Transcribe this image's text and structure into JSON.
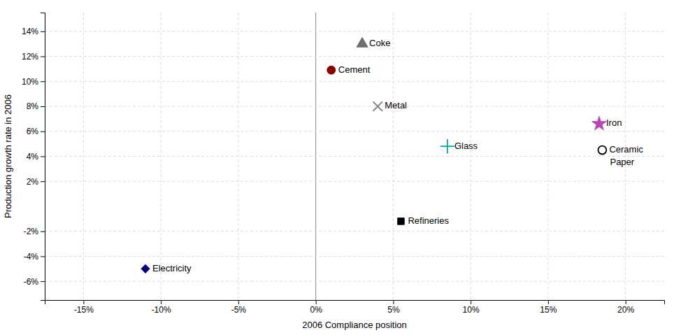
{
  "chart_data": {
    "type": "scatter",
    "xlabel": "2006 Compliance position",
    "ylabel": "Production growth rate in 2006",
    "xlim": [
      -0.175,
      0.225
    ],
    "ylim": [
      -0.075,
      0.155
    ],
    "xticks": [
      {
        "value": -0.15,
        "label": "-15%"
      },
      {
        "value": -0.1,
        "label": "-10%"
      },
      {
        "value": -0.05,
        "label": "-5%"
      },
      {
        "value": 0.0,
        "label": "0%"
      },
      {
        "value": 0.05,
        "label": "5%"
      },
      {
        "value": 0.1,
        "label": "10%"
      },
      {
        "value": 0.15,
        "label": "15%"
      },
      {
        "value": 0.2,
        "label": "20%"
      }
    ],
    "yticks": [
      {
        "value": -0.06,
        "label": "-6%"
      },
      {
        "value": -0.04,
        "label": "-4%"
      },
      {
        "value": -0.02,
        "label": "-2%"
      },
      {
        "value": 0.02,
        "label": "2%"
      },
      {
        "value": 0.04,
        "label": "4%"
      },
      {
        "value": 0.06,
        "label": "6%"
      },
      {
        "value": 0.08,
        "label": "8%"
      },
      {
        "value": 0.1,
        "label": "10%"
      },
      {
        "value": 0.12,
        "label": "12%"
      },
      {
        "value": 0.14,
        "label": "14%"
      }
    ],
    "grid": true,
    "series": [
      {
        "name": "Coke",
        "x": [
          0.03
        ],
        "values": [
          0.13
        ],
        "marker": "triangle",
        "color": "#707070"
      },
      {
        "name": "Cement",
        "x": [
          0.01
        ],
        "values": [
          0.109
        ],
        "marker": "circle",
        "color": "#8B0000"
      },
      {
        "name": "Metal",
        "x": [
          0.04
        ],
        "values": [
          0.08
        ],
        "marker": "x",
        "color": "#808080"
      },
      {
        "name": "Glass",
        "x": [
          0.085
        ],
        "values": [
          0.048
        ],
        "marker": "plus",
        "color": "#00AAAA"
      },
      {
        "name": "Iron",
        "x": [
          0.183
        ],
        "values": [
          0.066
        ],
        "marker": "star",
        "color": "#BB44BB"
      },
      {
        "name": "Ceramic",
        "x": [
          0.185
        ],
        "values": [
          0.045
        ],
        "marker": "open-circle",
        "color": "#000000"
      },
      {
        "name": "Paper",
        "x": [
          0.19
        ],
        "values": [
          0.035
        ],
        "marker": "none",
        "color": "#000000"
      },
      {
        "name": "Refineries",
        "x": [
          0.055
        ],
        "values": [
          -0.012
        ],
        "marker": "square",
        "color": "#000000"
      },
      {
        "name": "Electricity",
        "x": [
          -0.11
        ],
        "values": [
          -0.05
        ],
        "marker": "diamond",
        "color": "#000080"
      }
    ]
  }
}
